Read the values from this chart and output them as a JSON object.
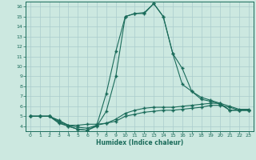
{
  "xlabel": "Humidex (Indice chaleur)",
  "background_color": "#cce8e0",
  "grid_color": "#aacccc",
  "line_color": "#1a6b5a",
  "xlim": [
    -0.5,
    23.5
  ],
  "ylim": [
    3.5,
    16.5
  ],
  "xticks": [
    0,
    1,
    2,
    3,
    4,
    5,
    6,
    7,
    8,
    9,
    10,
    11,
    12,
    13,
    14,
    15,
    16,
    17,
    18,
    19,
    20,
    21,
    22,
    23
  ],
  "yticks": [
    4,
    5,
    6,
    7,
    8,
    9,
    10,
    11,
    12,
    13,
    14,
    15,
    16
  ],
  "line1_x": [
    0,
    1,
    2,
    3,
    4,
    5,
    6,
    7,
    8,
    9,
    10,
    11,
    12,
    13,
    14,
    15,
    16,
    17,
    18,
    19,
    20,
    21,
    22,
    23
  ],
  "line1_y": [
    5.0,
    5.0,
    5.0,
    4.5,
    4.1,
    4.1,
    4.2,
    4.2,
    4.3,
    4.5,
    5.0,
    5.2,
    5.4,
    5.5,
    5.6,
    5.6,
    5.7,
    5.8,
    5.9,
    6.1,
    6.1,
    5.9,
    5.6,
    5.6
  ],
  "line2_x": [
    0,
    1,
    2,
    3,
    4,
    5,
    6,
    7,
    8,
    9,
    10,
    11,
    12,
    13,
    14,
    15,
    16,
    17,
    18,
    19,
    20,
    21,
    22,
    23
  ],
  "line2_y": [
    5.0,
    5.0,
    5.0,
    4.6,
    4.1,
    3.9,
    3.8,
    4.1,
    4.3,
    4.7,
    5.3,
    5.6,
    5.8,
    5.9,
    5.9,
    5.9,
    6.0,
    6.1,
    6.2,
    6.3,
    6.3,
    6.0,
    5.7,
    5.7
  ],
  "line3_x": [
    0,
    1,
    2,
    3,
    4,
    5,
    6,
    7,
    8,
    9,
    10,
    11,
    12,
    13,
    14,
    15,
    16,
    17,
    18,
    19,
    20,
    21,
    22,
    23
  ],
  "line3_y": [
    5.0,
    5.0,
    5.0,
    4.4,
    4.0,
    3.7,
    3.6,
    4.0,
    5.5,
    9.0,
    15.0,
    15.3,
    15.4,
    16.3,
    15.0,
    11.3,
    9.8,
    7.5,
    6.9,
    6.6,
    6.3,
    5.6,
    5.6,
    5.6
  ],
  "line4_x": [
    0,
    1,
    2,
    3,
    4,
    5,
    6,
    7,
    8,
    9,
    10,
    11,
    12,
    13,
    14,
    15,
    16,
    17,
    18,
    19,
    20,
    21,
    22,
    23
  ],
  "line4_y": [
    5.0,
    5.0,
    5.0,
    4.3,
    4.0,
    3.7,
    3.6,
    4.1,
    7.3,
    11.5,
    15.0,
    15.3,
    15.3,
    16.3,
    15.0,
    11.3,
    8.2,
    7.5,
    6.7,
    6.5,
    6.2,
    5.6,
    5.6,
    5.6
  ]
}
